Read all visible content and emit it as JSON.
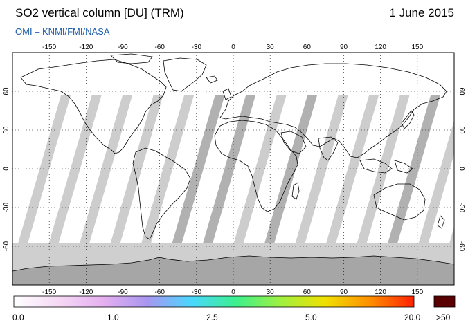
{
  "header": {
    "title": "SO2 vertical column [DU] (TRM)",
    "date": "1 June 2015",
    "source": "OMI  –  KNMI/FMI/NASA"
  },
  "map": {
    "lon_ticks": [
      "-150",
      "-120",
      "-90",
      "-60",
      "-30",
      "0",
      "30",
      "60",
      "90",
      "120",
      "150"
    ],
    "lat_ticks_left": [
      "60",
      "30",
      "0",
      "-30",
      "-60"
    ],
    "lat_ticks_right": [
      "60",
      "30",
      "0",
      "-30",
      "-60"
    ],
    "colors": {
      "land": "#ffffff",
      "outline": "#000000",
      "swath_gap": "#c8c8c8",
      "swath_dark": "#a8a8a8",
      "antarctica": "#a6a6a6"
    }
  },
  "colorbar": {
    "labels": [
      "0.0",
      "1.0",
      "2.5",
      "5.0",
      "20.0"
    ],
    "overflow_label": ">50",
    "overflow_color": "#5a0000",
    "gradient": [
      "#ffffff",
      "#f5d9f5",
      "#e6b0f0",
      "#a896f0",
      "#4ad8ff",
      "#3cf08c",
      "#a0f040",
      "#f0e000",
      "#ff9000",
      "#ff2000"
    ]
  }
}
